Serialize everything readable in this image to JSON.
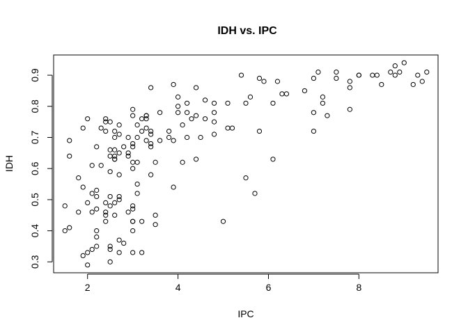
{
  "chart_data": {
    "type": "scatter",
    "title": "IDH vs. IPC",
    "xlabel": "IPC",
    "ylabel": "IDH",
    "xlim": [
      1.25,
      9.75
    ],
    "ylim": [
      0.265,
      0.965
    ],
    "xticks": [
      "2",
      "4",
      "6",
      "8"
    ],
    "yticks": [
      "0.3",
      "0.4",
      "0.5",
      "0.6",
      "0.7",
      "0.8",
      "0.9"
    ],
    "xtick_values": [
      2,
      4,
      6,
      8
    ],
    "ytick_values": [
      0.3,
      0.4,
      0.5,
      0.6,
      0.7,
      0.8,
      0.9
    ],
    "grid": false,
    "series": [
      {
        "points": [
          [
            1.5,
            0.48
          ],
          [
            1.5,
            0.4
          ],
          [
            1.6,
            0.41
          ],
          [
            1.6,
            0.64
          ],
          [
            1.6,
            0.69
          ],
          [
            1.8,
            0.57
          ],
          [
            1.8,
            0.46
          ],
          [
            1.9,
            0.73
          ],
          [
            1.9,
            0.54
          ],
          [
            1.9,
            0.32
          ],
          [
            2.0,
            0.76
          ],
          [
            2.0,
            0.49
          ],
          [
            2.0,
            0.33
          ],
          [
            2.0,
            0.29
          ],
          [
            2.1,
            0.61
          ],
          [
            2.1,
            0.52
          ],
          [
            2.1,
            0.46
          ],
          [
            2.1,
            0.34
          ],
          [
            2.2,
            0.67
          ],
          [
            2.2,
            0.53
          ],
          [
            2.2,
            0.51
          ],
          [
            2.2,
            0.47
          ],
          [
            2.2,
            0.4
          ],
          [
            2.2,
            0.38
          ],
          [
            2.2,
            0.35
          ],
          [
            2.3,
            0.73
          ],
          [
            2.3,
            0.61
          ],
          [
            2.4,
            0.76
          ],
          [
            2.4,
            0.75
          ],
          [
            2.4,
            0.72
          ],
          [
            2.4,
            0.49
          ],
          [
            2.4,
            0.46
          ],
          [
            2.4,
            0.45
          ],
          [
            2.4,
            0.43
          ],
          [
            2.5,
            0.75
          ],
          [
            2.5,
            0.66
          ],
          [
            2.5,
            0.64
          ],
          [
            2.5,
            0.59
          ],
          [
            2.5,
            0.51
          ],
          [
            2.5,
            0.48
          ],
          [
            2.5,
            0.35
          ],
          [
            2.5,
            0.34
          ],
          [
            2.5,
            0.3
          ],
          [
            2.6,
            0.72
          ],
          [
            2.6,
            0.7
          ],
          [
            2.6,
            0.66
          ],
          [
            2.6,
            0.64
          ],
          [
            2.6,
            0.63
          ],
          [
            2.6,
            0.63
          ],
          [
            2.6,
            0.49
          ],
          [
            2.6,
            0.45
          ],
          [
            2.7,
            0.74
          ],
          [
            2.7,
            0.71
          ],
          [
            2.7,
            0.65
          ],
          [
            2.7,
            0.58
          ],
          [
            2.7,
            0.51
          ],
          [
            2.7,
            0.5
          ],
          [
            2.7,
            0.37
          ],
          [
            2.7,
            0.33
          ],
          [
            2.8,
            0.67
          ],
          [
            2.8,
            0.36
          ],
          [
            2.9,
            0.7
          ],
          [
            2.9,
            0.65
          ],
          [
            2.9,
            0.64
          ],
          [
            2.9,
            0.46
          ],
          [
            3.0,
            0.79
          ],
          [
            3.0,
            0.77
          ],
          [
            3.0,
            0.68
          ],
          [
            3.0,
            0.67
          ],
          [
            3.0,
            0.62
          ],
          [
            3.0,
            0.6
          ],
          [
            3.0,
            0.48
          ],
          [
            3.0,
            0.47
          ],
          [
            3.0,
            0.43
          ],
          [
            3.0,
            0.43
          ],
          [
            3.0,
            0.4
          ],
          [
            3.0,
            0.33
          ],
          [
            3.1,
            0.74
          ],
          [
            3.1,
            0.7
          ],
          [
            3.1,
            0.62
          ],
          [
            3.1,
            0.55
          ],
          [
            3.1,
            0.52
          ],
          [
            3.2,
            0.76
          ],
          [
            3.2,
            0.72
          ],
          [
            3.2,
            0.43
          ],
          [
            3.2,
            0.33
          ],
          [
            3.3,
            0.77
          ],
          [
            3.3,
            0.77
          ],
          [
            3.3,
            0.76
          ],
          [
            3.3,
            0.73
          ],
          [
            3.3,
            0.69
          ],
          [
            3.4,
            0.86
          ],
          [
            3.4,
            0.72
          ],
          [
            3.4,
            0.71
          ],
          [
            3.4,
            0.68
          ],
          [
            3.4,
            0.67
          ],
          [
            3.4,
            0.58
          ],
          [
            3.5,
            0.62
          ],
          [
            3.5,
            0.45
          ],
          [
            3.5,
            0.42
          ],
          [
            3.6,
            0.78
          ],
          [
            3.6,
            0.69
          ],
          [
            3.8,
            0.72
          ],
          [
            3.8,
            0.7
          ],
          [
            3.9,
            0.87
          ],
          [
            3.9,
            0.69
          ],
          [
            3.9,
            0.54
          ],
          [
            4.0,
            0.83
          ],
          [
            4.0,
            0.8
          ],
          [
            4.0,
            0.78
          ],
          [
            4.1,
            0.74
          ],
          [
            4.1,
            0.62
          ],
          [
            4.2,
            0.81
          ],
          [
            4.2,
            0.78
          ],
          [
            4.2,
            0.7
          ],
          [
            4.3,
            0.76
          ],
          [
            4.4,
            0.86
          ],
          [
            4.4,
            0.77
          ],
          [
            4.4,
            0.63
          ],
          [
            4.5,
            0.7
          ],
          [
            4.6,
            0.82
          ],
          [
            4.6,
            0.76
          ],
          [
            4.8,
            0.81
          ],
          [
            4.8,
            0.78
          ],
          [
            4.8,
            0.75
          ],
          [
            4.8,
            0.71
          ],
          [
            5.0,
            0.43
          ],
          [
            5.1,
            0.81
          ],
          [
            5.1,
            0.73
          ],
          [
            5.2,
            0.73
          ],
          [
            5.4,
            0.9
          ],
          [
            5.5,
            0.81
          ],
          [
            5.5,
            0.57
          ],
          [
            5.6,
            0.83
          ],
          [
            5.7,
            0.52
          ],
          [
            5.8,
            0.89
          ],
          [
            5.8,
            0.72
          ],
          [
            5.9,
            0.88
          ],
          [
            6.1,
            0.81
          ],
          [
            6.1,
            0.63
          ],
          [
            6.2,
            0.88
          ],
          [
            6.3,
            0.84
          ],
          [
            6.4,
            0.84
          ],
          [
            6.8,
            0.85
          ],
          [
            7.0,
            0.89
          ],
          [
            7.0,
            0.78
          ],
          [
            7.0,
            0.72
          ],
          [
            7.1,
            0.91
          ],
          [
            7.2,
            0.83
          ],
          [
            7.2,
            0.81
          ],
          [
            7.3,
            0.77
          ],
          [
            7.5,
            0.91
          ],
          [
            7.5,
            0.89
          ],
          [
            7.8,
            0.88
          ],
          [
            7.8,
            0.86
          ],
          [
            7.8,
            0.79
          ],
          [
            8.0,
            0.9
          ],
          [
            8.0,
            0.9
          ],
          [
            8.3,
            0.9
          ],
          [
            8.4,
            0.9
          ],
          [
            8.5,
            0.87
          ],
          [
            8.7,
            0.91
          ],
          [
            8.8,
            0.93
          ],
          [
            8.8,
            0.9
          ],
          [
            8.9,
            0.91
          ],
          [
            9.0,
            0.94
          ],
          [
            9.2,
            0.87
          ],
          [
            9.3,
            0.9
          ],
          [
            9.4,
            0.88
          ],
          [
            9.5,
            0.91
          ]
        ]
      }
    ]
  }
}
